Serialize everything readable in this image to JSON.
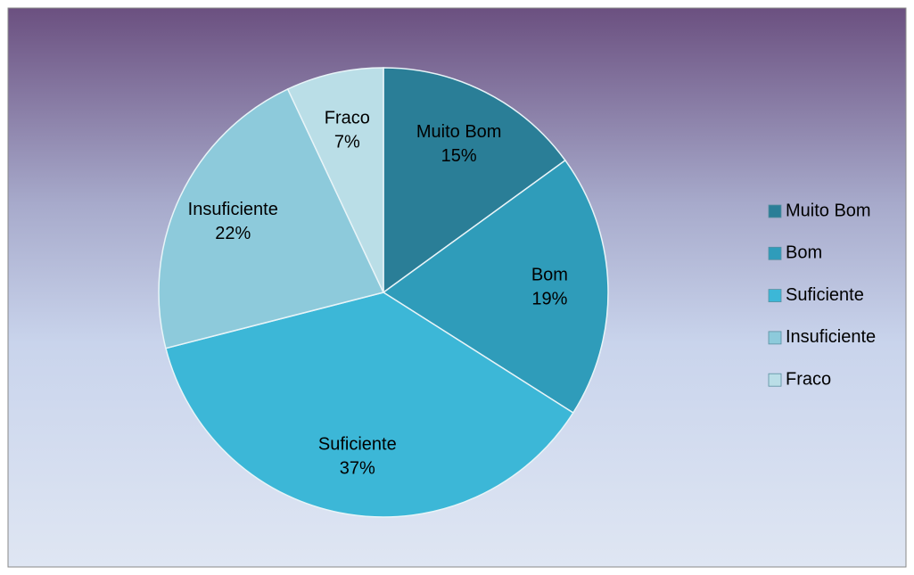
{
  "chart_data": {
    "type": "pie",
    "categories": [
      "Muito Bom",
      "Bom",
      "Suficiente",
      "Insuficiente",
      "Fraco"
    ],
    "values": [
      15,
      19,
      37,
      22,
      7
    ],
    "value_labels": [
      "15%",
      "19%",
      "37%",
      "22%",
      "7%"
    ],
    "colors": [
      "#2a7e97",
      "#2f9cba",
      "#3cb7d7",
      "#8dcadb",
      "#badee7"
    ],
    "start_angle": 0,
    "direction": "clockwise",
    "legend": "right"
  }
}
